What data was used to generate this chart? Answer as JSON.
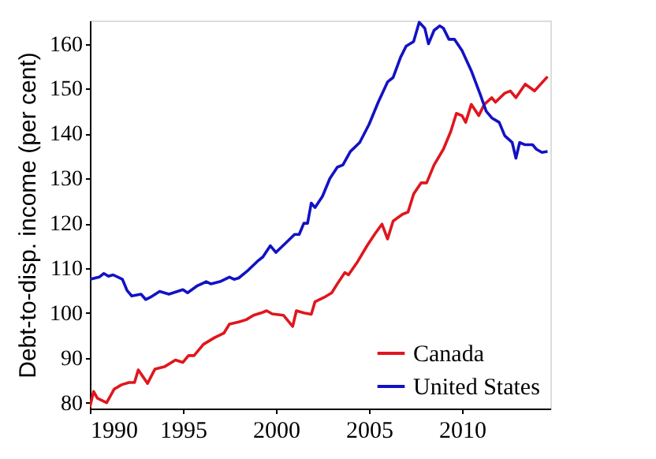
{
  "chart_data": {
    "type": "line",
    "ylabel": "Debt-to-disp. income (per cent)",
    "xlim": [
      1990,
      2014.75
    ],
    "xticks": [
      1990,
      1995,
      2000,
      2005,
      2010
    ],
    "ylim": [
      78.7,
      165.2
    ],
    "yticks": [
      80,
      90,
      100,
      110,
      120,
      130,
      140,
      150,
      160
    ],
    "grid": false,
    "legend": "bottom right",
    "marker": "none",
    "line_style": "solid",
    "series": [
      {
        "name": "Canada",
        "color": "#e0161e",
        "x": [
          1990.0,
          1990.2,
          1990.4,
          1990.9,
          1991.3,
          1991.7,
          1992.1,
          1992.4,
          1992.6,
          1993.1,
          1993.5,
          1994.0,
          1994.6,
          1995.0,
          1995.3,
          1995.6,
          1996.1,
          1996.7,
          1997.2,
          1997.5,
          1998.0,
          1998.4,
          1998.8,
          1999.2,
          1999.5,
          1999.8,
          2000.4,
          2000.9,
          2001.1,
          2001.5,
          2001.9,
          2002.1,
          2002.6,
          2003.0,
          2003.3,
          2003.7,
          2003.9,
          2004.4,
          2004.9,
          2005.3,
          2005.7,
          2006.0,
          2006.3,
          2006.8,
          2007.1,
          2007.4,
          2007.8,
          2008.1,
          2008.5,
          2009.0,
          2009.4,
          2009.7,
          2010.0,
          2010.2,
          2010.5,
          2010.9,
          2011.2,
          2011.6,
          2011.8,
          2012.3,
          2012.6,
          2012.9,
          2013.4,
          2013.9,
          2014.6
        ],
        "values": [
          79,
          82.5,
          81,
          80,
          83,
          84,
          84.5,
          84.5,
          87.3,
          84.3,
          87.5,
          88,
          89.5,
          89,
          90.5,
          90.5,
          93,
          94.5,
          95.5,
          97.5,
          98,
          98.5,
          99.5,
          100,
          100.5,
          99.8,
          99.5,
          97,
          100.5,
          100,
          99.7,
          102.5,
          103.5,
          104.5,
          106.5,
          109,
          108.5,
          111.5,
          115,
          117.5,
          119.8,
          116.5,
          120.5,
          122,
          122.5,
          126.5,
          129,
          129,
          133,
          136.5,
          140.5,
          144.5,
          144,
          142.5,
          146.5,
          144,
          146.5,
          148,
          147,
          149,
          149.5,
          148,
          151,
          149.5,
          152.7
        ]
      },
      {
        "name": "United States",
        "color": "#1212c4",
        "x": [
          1990.0,
          1990.5,
          1990.75,
          1991.0,
          1991.25,
          1991.75,
          1992.0,
          1992.25,
          1992.75,
          1993.0,
          1993.25,
          1993.75,
          1994.25,
          1995.0,
          1995.25,
          1995.75,
          1996.25,
          1996.5,
          1997.0,
          1997.5,
          1997.75,
          1998.0,
          1998.5,
          1999.0,
          1999.3,
          1999.7,
          2000.0,
          2000.5,
          2001.0,
          2001.25,
          2001.5,
          2001.7,
          2001.9,
          2002.1,
          2002.5,
          2002.9,
          2003.3,
          2003.6,
          2004.0,
          2004.5,
          2005.0,
          2005.5,
          2006.0,
          2006.3,
          2006.7,
          2007.0,
          2007.4,
          2007.7,
          2008.0,
          2008.2,
          2008.5,
          2008.8,
          2009.0,
          2009.3,
          2009.6,
          2010.0,
          2010.5,
          2011.0,
          2011.3,
          2011.6,
          2012.0,
          2012.3,
          2012.7,
          2012.9,
          2013.1,
          2013.4,
          2013.8,
          2014.0,
          2014.3,
          2014.6
        ],
        "values": [
          107.5,
          108,
          108.8,
          108.2,
          108.5,
          107.5,
          105,
          103.8,
          104.2,
          103,
          103.5,
          104.8,
          104.2,
          105.2,
          104.5,
          106,
          107,
          106.5,
          107,
          108,
          107.5,
          107.8,
          109.5,
          111.5,
          112.5,
          115,
          113.5,
          115.5,
          117.5,
          117.5,
          120,
          120,
          124.5,
          123.5,
          126,
          130,
          132.5,
          133,
          136,
          138,
          142,
          147,
          151.5,
          152.5,
          157,
          159.5,
          160.5,
          164.8,
          163.5,
          160,
          163,
          164,
          163.5,
          161,
          161,
          158.5,
          154,
          148.5,
          145,
          143.5,
          142.5,
          139.5,
          138,
          134.5,
          138,
          137.5,
          137.5,
          136.5,
          135.8,
          136
        ]
      }
    ]
  }
}
